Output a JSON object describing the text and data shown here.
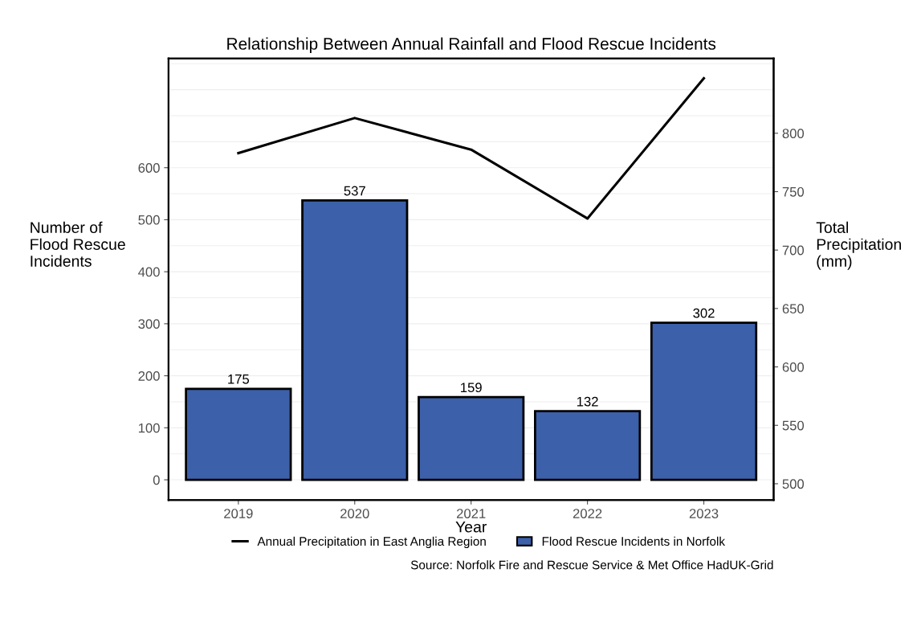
{
  "chart_data": {
    "type": "bar",
    "title": "Relationship Between Annual Rainfall and Flood Rescue Incidents",
    "xlabel": "Year",
    "ylabel": "Number of\nFlood Rescue\nIncidents",
    "y2label": "Total\nPrecipitation\n(mm)",
    "categories": [
      "2019",
      "2020",
      "2021",
      "2022",
      "2023"
    ],
    "series": [
      {
        "name": "Flood Rescue Incidents in Norfolk",
        "color": "#3c60a9",
        "values": [
          175,
          537,
          159,
          132,
          302
        ],
        "value_labels": [
          "175",
          "537",
          "159",
          "132",
          "302"
        ]
      },
      {
        "name": "Annual Precipitation in East Anglia Region",
        "type": "line",
        "axis": "y2",
        "color": "#000000",
        "values": [
          783,
          813,
          786,
          727,
          847
        ]
      }
    ],
    "ylim": [
      -39,
      810
    ],
    "yticks": [
      0,
      100,
      200,
      300,
      400,
      500,
      600
    ],
    "y2lim": [
      486,
      864
    ],
    "y2ticks": [
      500,
      550,
      600,
      650,
      700,
      750,
      800
    ],
    "grid": "y",
    "legend": "bottom",
    "line_style": "solid",
    "marker": "none",
    "annotations": [
      "Source: Norfolk Fire and Rescue Service & Met Office HadUK-Grid"
    ]
  }
}
